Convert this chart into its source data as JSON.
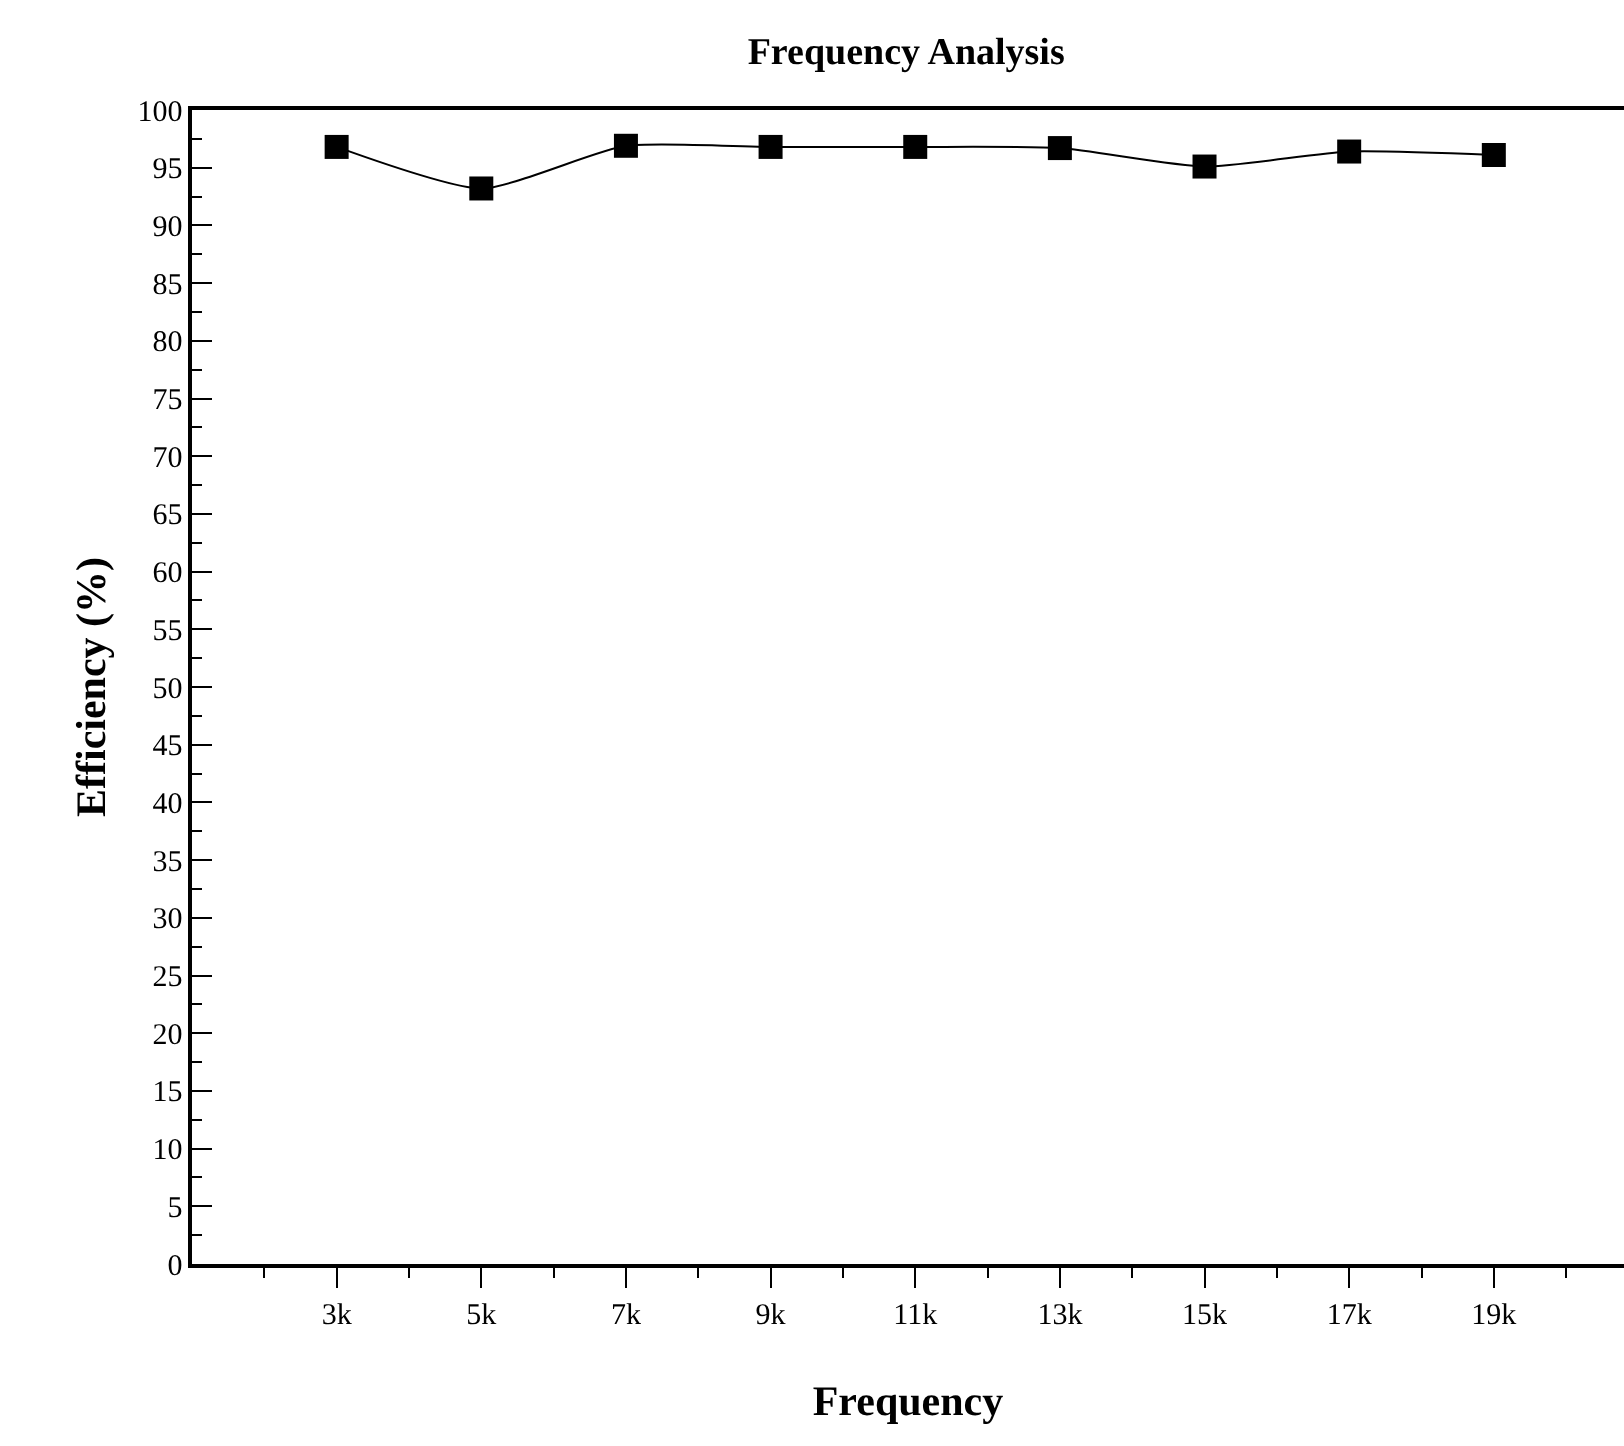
{
  "chart_data": {
    "type": "line",
    "title": "Frequency Analysis",
    "xlabel": "Frequency",
    "ylabel": "Efficiency (%)",
    "x": [
      3000,
      5000,
      7000,
      9000,
      11000,
      13000,
      15000,
      17000,
      19000
    ],
    "series": [
      {
        "color": "#000000",
        "values": [
          96.8,
          93.2,
          96.9,
          96.8,
          96.8,
          96.7,
          95.1,
          96.4,
          96.1
        ]
      }
    ],
    "xlim": [
      1000,
      20800
    ],
    "xticks": [
      {
        "value": 2000,
        "label": null
      },
      {
        "value": 3000,
        "label": "3k"
      },
      {
        "value": 4000,
        "label": null
      },
      {
        "value": 5000,
        "label": "5k"
      },
      {
        "value": 6000,
        "label": null
      },
      {
        "value": 7000,
        "label": "7k"
      },
      {
        "value": 8000,
        "label": null
      },
      {
        "value": 9000,
        "label": "9k"
      },
      {
        "value": 10000,
        "label": null
      },
      {
        "value": 11000,
        "label": "11k"
      },
      {
        "value": 12000,
        "label": null
      },
      {
        "value": 13000,
        "label": "13k"
      },
      {
        "value": 14000,
        "label": null
      },
      {
        "value": 15000,
        "label": "15k"
      },
      {
        "value": 16000,
        "label": null
      },
      {
        "value": 17000,
        "label": "17k"
      },
      {
        "value": 18000,
        "label": null
      },
      {
        "value": 19000,
        "label": "19k"
      },
      {
        "value": 20000,
        "label": null
      }
    ],
    "ylim": [
      0,
      100
    ],
    "yticks": [
      0,
      {
        "value": 2.5,
        "label": null
      },
      5,
      {
        "value": 7.5,
        "label": null
      },
      10,
      {
        "value": 12.5,
        "label": null
      },
      15,
      {
        "value": 17.5,
        "label": null
      },
      20,
      {
        "value": 22.5,
        "label": null
      },
      25,
      {
        "value": 27.5,
        "label": null
      },
      30,
      {
        "value": 32.5,
        "label": null
      },
      35,
      {
        "value": 37.5,
        "label": null
      },
      40,
      {
        "value": 42.5,
        "label": null
      },
      45,
      {
        "value": 47.5,
        "label": null
      },
      50,
      {
        "value": 52.5,
        "label": null
      },
      55,
      {
        "value": 57.5,
        "label": null
      },
      60,
      {
        "value": 62.5,
        "label": null
      },
      65,
      {
        "value": 67.5,
        "label": null
      },
      70,
      {
        "value": 72.5,
        "label": null
      },
      75,
      {
        "value": 77.5,
        "label": null
      },
      80,
      {
        "value": 82.5,
        "label": null
      },
      85,
      {
        "value": 87.5,
        "label": null
      },
      90,
      {
        "value": 92.5,
        "label": null
      },
      95,
      {
        "value": 97.5,
        "label": null
      },
      100
    ],
    "marker": "square",
    "line_style": "solid"
  }
}
